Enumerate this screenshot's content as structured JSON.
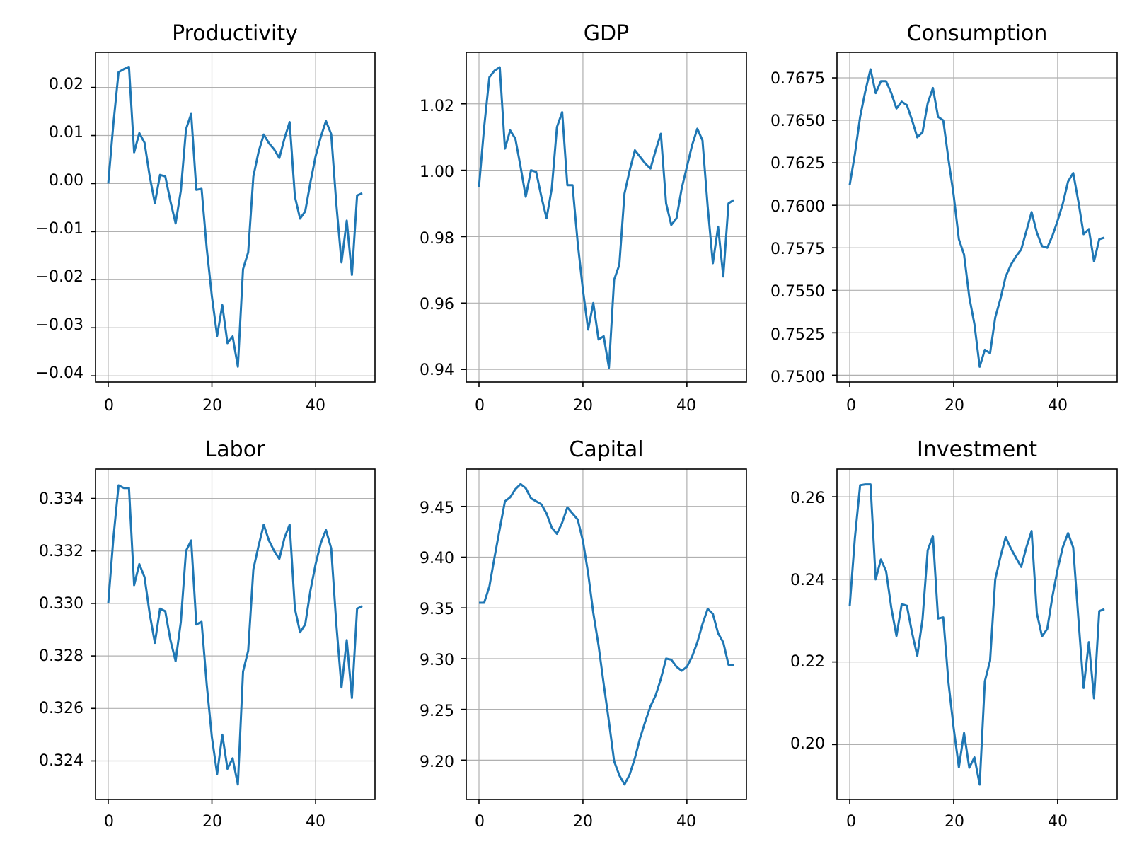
{
  "chart_data": [
    {
      "type": "line",
      "title": "Productivity",
      "xlabel": "",
      "ylabel": "",
      "x": [
        0,
        1,
        2,
        3,
        4,
        5,
        6,
        7,
        8,
        9,
        10,
        11,
        12,
        13,
        14,
        15,
        16,
        17,
        18,
        19,
        20,
        21,
        22,
        23,
        24,
        25,
        26,
        27,
        28,
        29,
        30,
        31,
        32,
        33,
        34,
        35,
        36,
        37,
        38,
        39,
        40,
        41,
        42,
        43,
        44,
        45,
        46,
        47,
        48,
        49
      ],
      "series": [
        {
          "color": "#1f77b4",
          "values": [
            0.0,
            0.0125,
            0.0232,
            0.0238,
            0.0243,
            0.0065,
            0.0105,
            0.0085,
            0.0015,
            -0.0041,
            0.0018,
            0.0015,
            -0.0037,
            -0.0083,
            -0.0015,
            0.0113,
            0.0145,
            -0.0013,
            -0.0011,
            -0.0135,
            -0.0235,
            -0.0317,
            -0.0253,
            -0.0332,
            -0.0318,
            -0.0381,
            -0.0178,
            -0.0143,
            0.0015,
            0.0066,
            0.0102,
            0.0084,
            0.0071,
            0.0053,
            0.0094,
            0.0128,
            -0.0027,
            -0.0073,
            -0.0058,
            0.0003,
            0.0057,
            0.0097,
            0.013,
            0.0103,
            -0.0043,
            -0.0164,
            -0.0077,
            -0.019,
            -0.0025,
            -0.002
          ]
        }
      ],
      "xticks": [
        "0",
        "20",
        "40"
      ],
      "yticks": [
        "0.02",
        "0.01",
        "0.00",
        "−0.01",
        "−0.02",
        "−0.03",
        "−0.04"
      ],
      "xlim": [
        -2.45,
        51.45
      ],
      "ylim": [
        -0.0413,
        0.0273
      ],
      "grid": true
    },
    {
      "type": "line",
      "title": "GDP",
      "xlabel": "",
      "ylabel": "",
      "x": [
        0,
        1,
        2,
        3,
        4,
        5,
        6,
        7,
        8,
        9,
        10,
        11,
        12,
        13,
        14,
        15,
        16,
        17,
        18,
        19,
        20,
        21,
        22,
        23,
        24,
        25,
        26,
        27,
        28,
        29,
        30,
        31,
        32,
        33,
        34,
        35,
        36,
        37,
        38,
        39,
        40,
        41,
        42,
        43,
        44,
        45,
        46,
        47,
        48,
        49
      ],
      "series": [
        {
          "color": "#1f77b4",
          "values": [
            0.995,
            1.013,
            1.028,
            1.03,
            1.031,
            1.0065,
            1.012,
            1.0095,
            1.001,
            0.992,
            1.0,
            0.9995,
            0.992,
            0.9855,
            0.9945,
            1.013,
            1.0175,
            0.9955,
            0.9955,
            0.978,
            0.964,
            0.952,
            0.96,
            0.949,
            0.95,
            0.9405,
            0.967,
            0.9715,
            0.993,
            1.0,
            1.006,
            1.004,
            1.002,
            1.0005,
            1.006,
            1.011,
            0.99,
            0.9835,
            0.9855,
            0.9945,
            1.001,
            1.0075,
            1.0125,
            1.009,
            0.989,
            0.972,
            0.983,
            0.968,
            0.99,
            0.991
          ]
        }
      ],
      "xticks": [
        "0",
        "20",
        "40"
      ],
      "yticks": [
        "1.02",
        "1.00",
        "0.98",
        "0.96",
        "0.94"
      ],
      "xlim": [
        -2.45,
        51.45
      ],
      "ylim": [
        0.9362,
        1.0355
      ],
      "grid": true
    },
    {
      "type": "line",
      "title": "Consumption",
      "xlabel": "",
      "ylabel": "",
      "x": [
        0,
        1,
        2,
        3,
        4,
        5,
        6,
        7,
        8,
        9,
        10,
        11,
        12,
        13,
        14,
        15,
        16,
        17,
        18,
        19,
        20,
        21,
        22,
        23,
        24,
        25,
        26,
        27,
        28,
        29,
        30,
        31,
        32,
        33,
        34,
        35,
        36,
        37,
        38,
        39,
        40,
        41,
        42,
        43,
        44,
        45,
        46,
        47,
        48,
        49
      ],
      "series": [
        {
          "color": "#1f77b4",
          "values": [
            0.7612,
            0.763,
            0.7652,
            0.7667,
            0.768,
            0.7666,
            0.7673,
            0.7673,
            0.7666,
            0.7657,
            0.7661,
            0.7659,
            0.765,
            0.764,
            0.7643,
            0.766,
            0.7669,
            0.7652,
            0.765,
            0.7627,
            0.7606,
            0.758,
            0.7571,
            0.7546,
            0.753,
            0.7505,
            0.7515,
            0.7513,
            0.7534,
            0.7545,
            0.7558,
            0.7565,
            0.757,
            0.7574,
            0.7585,
            0.7596,
            0.7584,
            0.7576,
            0.7575,
            0.7582,
            0.7591,
            0.7601,
            0.7614,
            0.7619,
            0.7602,
            0.7583,
            0.7586,
            0.7567,
            0.758,
            0.7581
          ]
        }
      ],
      "xticks": [
        "0",
        "20",
        "40"
      ],
      "yticks": [
        "0.7675",
        "0.7650",
        "0.7625",
        "0.7600",
        "0.7575",
        "0.7550",
        "0.7525",
        "0.7500"
      ],
      "xlim": [
        -2.45,
        51.45
      ],
      "ylim": [
        0.7496,
        0.769
      ],
      "grid": true
    },
    {
      "type": "line",
      "title": "Labor",
      "xlabel": "",
      "ylabel": "",
      "x": [
        0,
        1,
        2,
        3,
        4,
        5,
        6,
        7,
        8,
        9,
        10,
        11,
        12,
        13,
        14,
        15,
        16,
        17,
        18,
        19,
        20,
        21,
        22,
        23,
        24,
        25,
        26,
        27,
        28,
        29,
        30,
        31,
        32,
        33,
        34,
        35,
        36,
        37,
        38,
        39,
        40,
        41,
        42,
        43,
        44,
        45,
        46,
        47,
        48,
        49
      ],
      "series": [
        {
          "color": "#1f77b4",
          "values": [
            0.33,
            0.3325,
            0.3345,
            0.3344,
            0.3344,
            0.3307,
            0.3315,
            0.331,
            0.3296,
            0.3285,
            0.3298,
            0.3297,
            0.3286,
            0.3278,
            0.3293,
            0.332,
            0.3324,
            0.3292,
            0.3293,
            0.3269,
            0.3249,
            0.3235,
            0.325,
            0.3237,
            0.3241,
            0.3231,
            0.3274,
            0.3282,
            0.3313,
            0.3322,
            0.333,
            0.3324,
            0.332,
            0.3317,
            0.3325,
            0.333,
            0.3298,
            0.3289,
            0.3292,
            0.3305,
            0.3315,
            0.3323,
            0.3328,
            0.3321,
            0.3292,
            0.3268,
            0.3286,
            0.3264,
            0.3298,
            0.3299
          ]
        }
      ],
      "xticks": [
        "0",
        "20",
        "40"
      ],
      "yticks": [
        "0.334",
        "0.332",
        "0.330",
        "0.328",
        "0.326",
        "0.324"
      ],
      "xlim": [
        -2.45,
        51.45
      ],
      "ylim": [
        0.32253,
        0.33512
      ],
      "grid": true
    },
    {
      "type": "line",
      "title": "Capital",
      "xlabel": "",
      "ylabel": "",
      "x": [
        0,
        1,
        2,
        3,
        4,
        5,
        6,
        7,
        8,
        9,
        10,
        11,
        12,
        13,
        14,
        15,
        16,
        17,
        18,
        19,
        20,
        21,
        22,
        23,
        24,
        25,
        26,
        27,
        28,
        29,
        30,
        31,
        32,
        33,
        34,
        35,
        36,
        37,
        38,
        39,
        40,
        41,
        42,
        43,
        44,
        45,
        46,
        47,
        48,
        49
      ],
      "series": [
        {
          "color": "#1f77b4",
          "values": [
            9.355,
            9.355,
            9.371,
            9.4,
            9.428,
            9.455,
            9.459,
            9.467,
            9.472,
            9.468,
            9.458,
            9.455,
            9.452,
            9.443,
            9.429,
            9.423,
            9.434,
            9.449,
            9.443,
            9.437,
            9.416,
            9.384,
            9.345,
            9.313,
            9.275,
            9.238,
            9.199,
            9.185,
            9.176,
            9.186,
            9.202,
            9.222,
            9.238,
            9.253,
            9.264,
            9.28,
            9.3,
            9.299,
            9.292,
            9.288,
            9.292,
            9.302,
            9.316,
            9.334,
            9.349,
            9.344,
            9.325,
            9.316,
            9.294,
            9.294
          ]
        }
      ],
      "xticks": [
        "0",
        "20",
        "40"
      ],
      "yticks": [
        "9.45",
        "9.40",
        "9.35",
        "9.30",
        "9.25",
        "9.20"
      ],
      "xlim": [
        -2.45,
        51.45
      ],
      "ylim": [
        9.1612,
        9.4868
      ],
      "grid": true
    },
    {
      "type": "line",
      "title": "Investment",
      "xlabel": "",
      "ylabel": "",
      "x": [
        0,
        1,
        2,
        3,
        4,
        5,
        6,
        7,
        8,
        9,
        10,
        11,
        12,
        13,
        14,
        15,
        16,
        17,
        18,
        19,
        20,
        21,
        22,
        23,
        24,
        25,
        26,
        27,
        28,
        29,
        30,
        31,
        32,
        33,
        34,
        35,
        36,
        37,
        38,
        39,
        40,
        41,
        42,
        43,
        44,
        45,
        46,
        47,
        48,
        49
      ],
      "series": [
        {
          "color": "#1f77b4",
          "values": [
            0.2335,
            0.25,
            0.2628,
            0.263,
            0.263,
            0.24,
            0.2448,
            0.242,
            0.2331,
            0.2263,
            0.234,
            0.2336,
            0.227,
            0.2215,
            0.2303,
            0.247,
            0.2505,
            0.2305,
            0.2308,
            0.215,
            0.204,
            0.1945,
            0.2028,
            0.1944,
            0.1969,
            0.1903,
            0.2153,
            0.2203,
            0.24,
            0.2455,
            0.2502,
            0.2475,
            0.2452,
            0.243,
            0.2478,
            0.2517,
            0.2318,
            0.2262,
            0.228,
            0.2358,
            0.2425,
            0.2478,
            0.2512,
            0.2477,
            0.2303,
            0.2137,
            0.2248,
            0.2112,
            0.2323,
            0.2328
          ]
        }
      ],
      "xticks": [
        "0",
        "20",
        "40"
      ],
      "yticks": [
        "0.26",
        "0.24",
        "0.22",
        "0.20"
      ],
      "xlim": [
        -2.45,
        51.45
      ],
      "ylim": [
        0.1867,
        0.2667
      ],
      "grid": true
    }
  ]
}
